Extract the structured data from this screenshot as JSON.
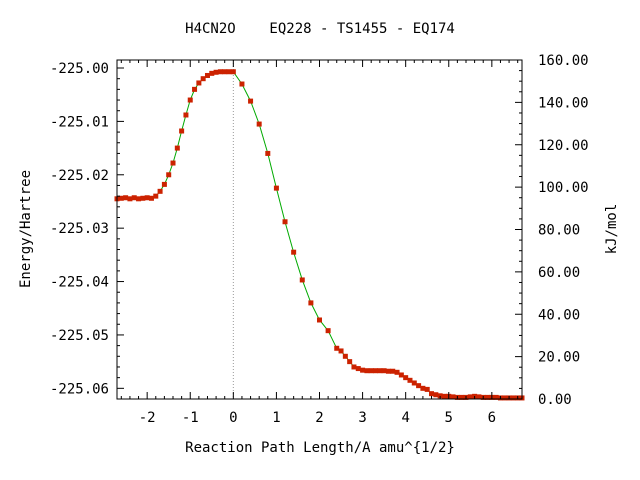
{
  "chart_data": {
    "type": "line",
    "title": "H4CN2O    EQ228 - TS1455 - EQ174",
    "xlabel": "Reaction Path Length/A amu^{1/2}",
    "ylabel": "Energy/Hartree",
    "y2label": "kJ/mol",
    "xlim": [
      -2.7,
      6.7
    ],
    "ylim": [
      -225.062,
      -224.9985
    ],
    "y2lim": [
      0,
      160
    ],
    "xticks": [
      -2,
      -1,
      0,
      1,
      2,
      3,
      4,
      5,
      6
    ],
    "xtick_labels": [
      "-2",
      "-1",
      "0",
      "1",
      "2",
      "3",
      "4",
      "5",
      "6"
    ],
    "yticks": [
      -225.0,
      -225.01,
      -225.02,
      -225.03,
      -225.04,
      -225.05,
      -225.06
    ],
    "ytick_labels": [
      "-225.00",
      "-225.01",
      "-225.02",
      "-225.03",
      "-225.04",
      "-225.05",
      "-225.06"
    ],
    "y2ticks": [
      0,
      20,
      40,
      60,
      80,
      100,
      120,
      140,
      160
    ],
    "y2tick_labels": [
      "0.00",
      "20.00",
      "40.00",
      "60.00",
      "80.00",
      "100.00",
      "120.00",
      "140.00",
      "160.00"
    ],
    "ts_x": 0,
    "grid": false,
    "colors": {
      "line": "#00aa00",
      "marker": "#cc2200",
      "ts_line": "#999999"
    },
    "series": [
      {
        "x": [
          -2.7,
          -2.6,
          -2.5,
          -2.4,
          -2.3,
          -2.2,
          -2.1,
          -2.0,
          -1.9,
          -1.8,
          -1.7,
          -1.6,
          -1.5,
          -1.4,
          -1.3,
          -1.2,
          -1.1,
          -1.0,
          -0.9,
          -0.8,
          -0.7,
          -0.6,
          -0.5,
          -0.4,
          -0.3,
          -0.2,
          -0.1,
          0.0,
          0.2,
          0.4,
          0.6,
          0.8,
          1.0,
          1.2,
          1.4,
          1.6,
          1.8,
          2.0,
          2.2,
          2.4,
          2.5,
          2.6,
          2.7,
          2.8,
          2.9,
          3.0,
          3.1,
          3.2,
          3.3,
          3.4,
          3.5,
          3.6,
          3.7,
          3.8,
          3.9,
          4.0,
          4.1,
          4.2,
          4.3,
          4.4,
          4.5,
          4.6,
          4.7,
          4.8,
          4.9,
          5.0,
          5.1,
          5.2,
          5.3,
          5.4,
          5.5,
          5.6,
          5.7,
          5.8,
          5.9,
          6.0,
          6.1,
          6.2,
          6.3,
          6.4,
          6.5,
          6.6,
          6.7
        ],
        "y": [
          -225.0245,
          -225.0244,
          -225.0243,
          -225.0245,
          -225.0243,
          -225.0245,
          -225.0244,
          -225.0243,
          -225.0244,
          -225.024,
          -225.0231,
          -225.0218,
          -225.02,
          -225.0178,
          -225.015,
          -225.0118,
          -225.0088,
          -225.006,
          -225.004,
          -225.0028,
          -225.002,
          -225.0014,
          -225.001,
          -225.0008,
          -225.0007,
          -225.0007,
          -225.0007,
          -225.0007,
          -225.003,
          -225.0062,
          -225.0105,
          -225.016,
          -225.0225,
          -225.0288,
          -225.0345,
          -225.0397,
          -225.044,
          -225.0472,
          -225.0492,
          -225.0525,
          -225.053,
          -225.054,
          -225.055,
          -225.056,
          -225.0563,
          -225.0566,
          -225.0567,
          -225.0567,
          -225.0567,
          -225.0567,
          -225.0567,
          -225.0568,
          -225.0568,
          -225.057,
          -225.0575,
          -225.058,
          -225.0585,
          -225.059,
          -225.0595,
          -225.06,
          -225.0602,
          -225.061,
          -225.0612,
          -225.0614,
          -225.0615,
          -225.0615,
          -225.0616,
          -225.0617,
          -225.0617,
          -225.0617,
          -225.0616,
          -225.0615,
          -225.0616,
          -225.0617,
          -225.0617,
          -225.0617,
          -225.0617,
          -225.0618,
          -225.0618,
          -225.0618,
          -225.0618,
          -225.0618,
          -225.0618
        ]
      }
    ]
  }
}
